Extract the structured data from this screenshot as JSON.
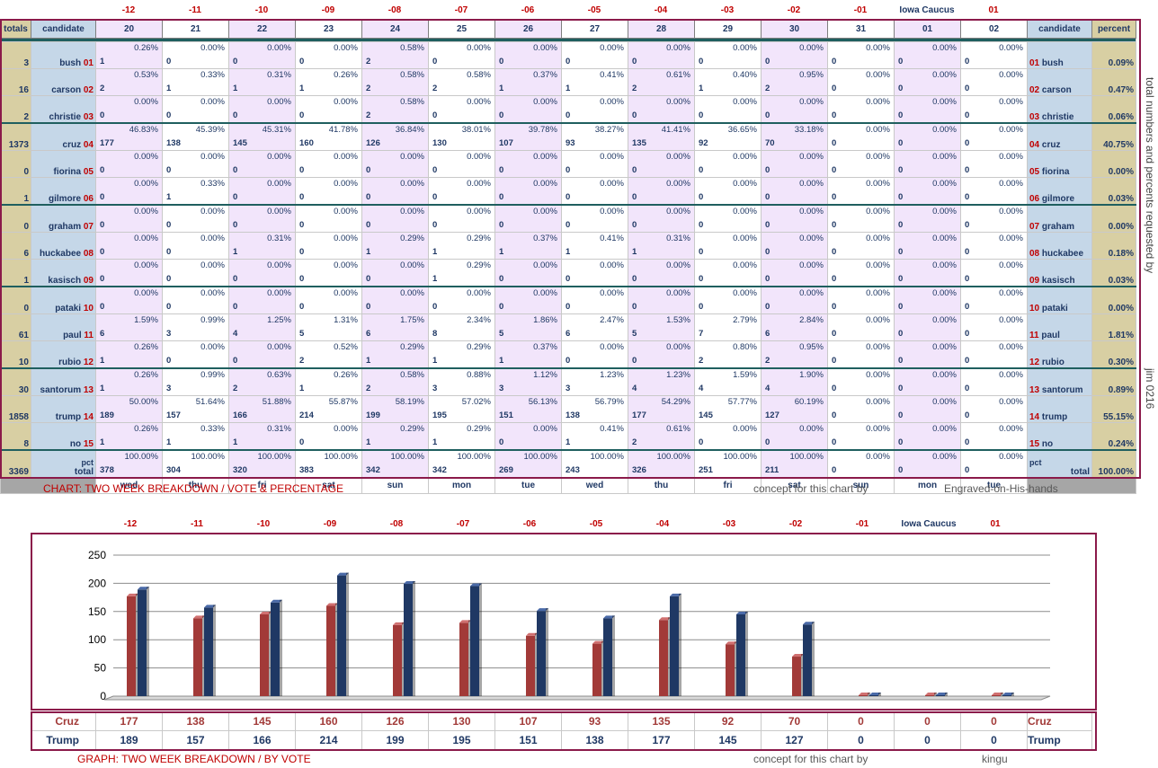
{
  "offsets": [
    "-12",
    "-11",
    "-10",
    "-09",
    "-08",
    "-07",
    "-06",
    "-05",
    "-04",
    "-03",
    "-02",
    "-01",
    "Iowa Caucus",
    "01"
  ],
  "header": {
    "totals": "totals",
    "candidate": "candidate",
    "percent": "percent",
    "days": [
      "20",
      "21",
      "22",
      "23",
      "24",
      "25",
      "26",
      "27",
      "28",
      "29",
      "30",
      "31",
      "01",
      "02"
    ]
  },
  "candidates": [
    {
      "total": "3",
      "name": "bush",
      "num": "01",
      "pct": "0.09%",
      "votes": [
        "1",
        "0",
        "0",
        "0",
        "2",
        "0",
        "0",
        "0",
        "0",
        "0",
        "0",
        "0",
        "0",
        "0"
      ],
      "pcts": [
        "0.26%",
        "0.00%",
        "0.00%",
        "0.00%",
        "0.58%",
        "0.00%",
        "0.00%",
        "0.00%",
        "0.00%",
        "0.00%",
        "0.00%",
        "0.00%",
        "0.00%",
        "0.00%"
      ]
    },
    {
      "total": "16",
      "name": "carson",
      "num": "02",
      "pct": "0.47%",
      "votes": [
        "2",
        "1",
        "1",
        "1",
        "2",
        "2",
        "1",
        "1",
        "2",
        "1",
        "2",
        "0",
        "0",
        "0"
      ],
      "pcts": [
        "0.53%",
        "0.33%",
        "0.31%",
        "0.26%",
        "0.58%",
        "0.58%",
        "0.37%",
        "0.41%",
        "0.61%",
        "0.40%",
        "0.95%",
        "0.00%",
        "0.00%",
        "0.00%"
      ]
    },
    {
      "total": "2",
      "name": "christie",
      "num": "03",
      "pct": "0.06%",
      "votes": [
        "0",
        "0",
        "0",
        "0",
        "2",
        "0",
        "0",
        "0",
        "0",
        "0",
        "0",
        "0",
        "0",
        "0"
      ],
      "pcts": [
        "0.00%",
        "0.00%",
        "0.00%",
        "0.00%",
        "0.58%",
        "0.00%",
        "0.00%",
        "0.00%",
        "0.00%",
        "0.00%",
        "0.00%",
        "0.00%",
        "0.00%",
        "0.00%"
      ]
    },
    {
      "total": "1373",
      "name": "cruz",
      "num": "04",
      "pct": "40.75%",
      "votes": [
        "177",
        "138",
        "145",
        "160",
        "126",
        "130",
        "107",
        "93",
        "135",
        "92",
        "70",
        "0",
        "0",
        "0"
      ],
      "pcts": [
        "46.83%",
        "45.39%",
        "45.31%",
        "41.78%",
        "36.84%",
        "38.01%",
        "39.78%",
        "38.27%",
        "41.41%",
        "36.65%",
        "33.18%",
        "0.00%",
        "0.00%",
        "0.00%"
      ]
    },
    {
      "total": "0",
      "name": "fiorina",
      "num": "05",
      "pct": "0.00%",
      "votes": [
        "0",
        "0",
        "0",
        "0",
        "0",
        "0",
        "0",
        "0",
        "0",
        "0",
        "0",
        "0",
        "0",
        "0"
      ],
      "pcts": [
        "0.00%",
        "0.00%",
        "0.00%",
        "0.00%",
        "0.00%",
        "0.00%",
        "0.00%",
        "0.00%",
        "0.00%",
        "0.00%",
        "0.00%",
        "0.00%",
        "0.00%",
        "0.00%"
      ]
    },
    {
      "total": "1",
      "name": "gilmore",
      "num": "06",
      "pct": "0.03%",
      "votes": [
        "0",
        "1",
        "0",
        "0",
        "0",
        "0",
        "0",
        "0",
        "0",
        "0",
        "0",
        "0",
        "0",
        "0"
      ],
      "pcts": [
        "0.00%",
        "0.33%",
        "0.00%",
        "0.00%",
        "0.00%",
        "0.00%",
        "0.00%",
        "0.00%",
        "0.00%",
        "0.00%",
        "0.00%",
        "0.00%",
        "0.00%",
        "0.00%"
      ]
    },
    {
      "total": "0",
      "name": "graham",
      "num": "07",
      "pct": "0.00%",
      "votes": [
        "0",
        "0",
        "0",
        "0",
        "0",
        "0",
        "0",
        "0",
        "0",
        "0",
        "0",
        "0",
        "0",
        "0"
      ],
      "pcts": [
        "0.00%",
        "0.00%",
        "0.00%",
        "0.00%",
        "0.00%",
        "0.00%",
        "0.00%",
        "0.00%",
        "0.00%",
        "0.00%",
        "0.00%",
        "0.00%",
        "0.00%",
        "0.00%"
      ]
    },
    {
      "total": "6",
      "name": "huckabee",
      "num": "08",
      "pct": "0.18%",
      "votes": [
        "0",
        "0",
        "1",
        "0",
        "1",
        "1",
        "1",
        "1",
        "1",
        "0",
        "0",
        "0",
        "0",
        "0"
      ],
      "pcts": [
        "0.00%",
        "0.00%",
        "0.31%",
        "0.00%",
        "0.29%",
        "0.29%",
        "0.37%",
        "0.41%",
        "0.31%",
        "0.00%",
        "0.00%",
        "0.00%",
        "0.00%",
        "0.00%"
      ]
    },
    {
      "total": "1",
      "name": "kasisch",
      "num": "09",
      "pct": "0.03%",
      "votes": [
        "0",
        "0",
        "0",
        "0",
        "0",
        "1",
        "0",
        "0",
        "0",
        "0",
        "0",
        "0",
        "0",
        "0"
      ],
      "pcts": [
        "0.00%",
        "0.00%",
        "0.00%",
        "0.00%",
        "0.00%",
        "0.29%",
        "0.00%",
        "0.00%",
        "0.00%",
        "0.00%",
        "0.00%",
        "0.00%",
        "0.00%",
        "0.00%"
      ]
    },
    {
      "total": "0",
      "name": "pataki",
      "num": "10",
      "pct": "0.00%",
      "votes": [
        "0",
        "0",
        "0",
        "0",
        "0",
        "0",
        "0",
        "0",
        "0",
        "0",
        "0",
        "0",
        "0",
        "0"
      ],
      "pcts": [
        "0.00%",
        "0.00%",
        "0.00%",
        "0.00%",
        "0.00%",
        "0.00%",
        "0.00%",
        "0.00%",
        "0.00%",
        "0.00%",
        "0.00%",
        "0.00%",
        "0.00%",
        "0.00%"
      ]
    },
    {
      "total": "61",
      "name": "paul",
      "num": "11",
      "pct": "1.81%",
      "votes": [
        "6",
        "3",
        "4",
        "5",
        "6",
        "8",
        "5",
        "6",
        "5",
        "7",
        "6",
        "0",
        "0",
        "0"
      ],
      "pcts": [
        "1.59%",
        "0.99%",
        "1.25%",
        "1.31%",
        "1.75%",
        "2.34%",
        "1.86%",
        "2.47%",
        "1.53%",
        "2.79%",
        "2.84%",
        "0.00%",
        "0.00%",
        "0.00%"
      ]
    },
    {
      "total": "10",
      "name": "rubio",
      "num": "12",
      "pct": "0.30%",
      "votes": [
        "1",
        "0",
        "0",
        "2",
        "1",
        "1",
        "1",
        "0",
        "0",
        "2",
        "2",
        "0",
        "0",
        "0"
      ],
      "pcts": [
        "0.26%",
        "0.00%",
        "0.00%",
        "0.52%",
        "0.29%",
        "0.29%",
        "0.37%",
        "0.00%",
        "0.00%",
        "0.80%",
        "0.95%",
        "0.00%",
        "0.00%",
        "0.00%"
      ]
    },
    {
      "total": "30",
      "name": "santorum",
      "num": "13",
      "pct": "0.89%",
      "votes": [
        "1",
        "3",
        "2",
        "1",
        "2",
        "3",
        "3",
        "3",
        "4",
        "4",
        "4",
        "0",
        "0",
        "0"
      ],
      "pcts": [
        "0.26%",
        "0.99%",
        "0.63%",
        "0.26%",
        "0.58%",
        "0.88%",
        "1.12%",
        "1.23%",
        "1.23%",
        "1.59%",
        "1.90%",
        "0.00%",
        "0.00%",
        "0.00%"
      ]
    },
    {
      "total": "1858",
      "name": "trump",
      "num": "14",
      "pct": "55.15%",
      "votes": [
        "189",
        "157",
        "166",
        "214",
        "199",
        "195",
        "151",
        "138",
        "177",
        "145",
        "127",
        "0",
        "0",
        "0"
      ],
      "pcts": [
        "50.00%",
        "51.64%",
        "51.88%",
        "55.87%",
        "58.19%",
        "57.02%",
        "56.13%",
        "56.79%",
        "54.29%",
        "57.77%",
        "60.19%",
        "0.00%",
        "0.00%",
        "0.00%"
      ]
    },
    {
      "total": "8",
      "name": "no",
      "num": "15",
      "pct": "0.24%",
      "votes": [
        "1",
        "1",
        "1",
        "0",
        "1",
        "1",
        "0",
        "1",
        "2",
        "0",
        "0",
        "0",
        "0",
        "0"
      ],
      "pcts": [
        "0.26%",
        "0.33%",
        "0.31%",
        "0.00%",
        "0.29%",
        "0.29%",
        "0.00%",
        "0.41%",
        "0.61%",
        "0.00%",
        "0.00%",
        "0.00%",
        "0.00%",
        "0.00%"
      ]
    }
  ],
  "totals_row": {
    "total": "3369",
    "label_pct": "pct",
    "label_total": "total",
    "pct": "100.00%",
    "votes": [
      "378",
      "304",
      "320",
      "383",
      "342",
      "342",
      "269",
      "243",
      "326",
      "251",
      "211",
      "0",
      "0",
      "0"
    ],
    "pcts": [
      "100.00%",
      "100.00%",
      "100.00%",
      "100.00%",
      "100.00%",
      "100.00%",
      "100.00%",
      "100.00%",
      "100.00%",
      "100.00%",
      "100.00%",
      "0.00%",
      "0.00%",
      "0.00%"
    ],
    "pct_right": "pct",
    "total_right": "total"
  },
  "weekdays": [
    "wed",
    "thu",
    "fri",
    "sat",
    "sun",
    "mon",
    "tue",
    "wed",
    "thu",
    "fri",
    "sat",
    "sun",
    "mon",
    "tue"
  ],
  "caption1": "CHART: TWO WEEK BREAKDOWN / VOTE & PERCENTAGE",
  "concept1": "concept for this chart by",
  "author1": "Engraved-on-His-hands",
  "side_note": "total numbers and percents requested by",
  "side_sig": "jim 0216",
  "caption2": "GRAPH: TWO WEEK BREAKDOWN / BY VOTE",
  "concept2": "concept for this chart by",
  "author2": "kingu",
  "colors": {
    "cruz": "#a23a38",
    "trump": "#1f3864",
    "purple": "#f2e5fb",
    "accent": "#c00000"
  },
  "chart_data": {
    "type": "bar",
    "categories": [
      "-12",
      "-11",
      "-10",
      "-09",
      "-08",
      "-07",
      "-06",
      "-05",
      "-04",
      "-03",
      "-02",
      "-01",
      "Iowa Caucus",
      "01"
    ],
    "series": [
      {
        "name": "Cruz",
        "values": [
          177,
          138,
          145,
          160,
          126,
          130,
          107,
          93,
          135,
          92,
          70,
          0,
          0,
          0
        ]
      },
      {
        "name": "Trump",
        "values": [
          189,
          157,
          166,
          214,
          199,
          195,
          151,
          138,
          177,
          145,
          127,
          0,
          0,
          0
        ]
      }
    ],
    "yticks": [
      "0",
      "50",
      "100",
      "150",
      "200",
      "250"
    ],
    "ylim": [
      0,
      250
    ],
    "grid": true
  }
}
